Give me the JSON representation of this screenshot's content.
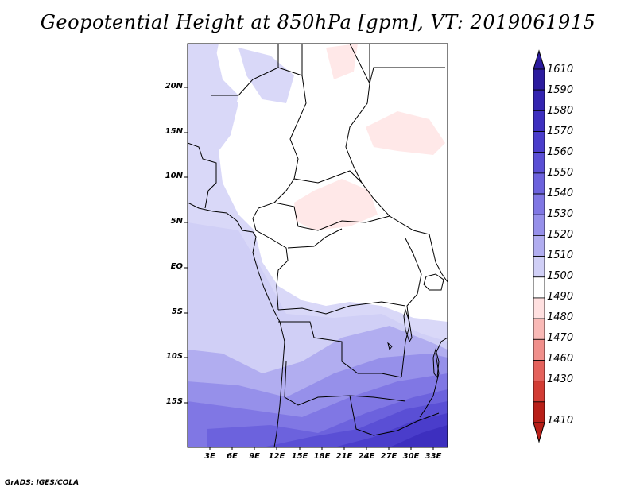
{
  "title": "Geopotential Height at 850hPa [gpm], VT: 2019061915",
  "credit": "GrADS: IGES/COLA",
  "lat_labels": [
    "20N",
    "15N",
    "10N",
    "5N",
    "EQ",
    "5S",
    "10S",
    "15S"
  ],
  "lon_labels": [
    "3E",
    "6E",
    "9E",
    "12E",
    "15E",
    "18E",
    "21E",
    "24E",
    "27E",
    "30E",
    "33E"
  ],
  "colorbar": {
    "levels": [
      "1610",
      "1590",
      "1580",
      "1570",
      "1560",
      "1550",
      "1540",
      "1530",
      "1520",
      "1510",
      "1500",
      "1490",
      "1480",
      "1470",
      "1460",
      "1430",
      "1410"
    ],
    "colors": [
      "#2b1b9e",
      "#3324b0",
      "#3d2fbf",
      "#4a3dcb",
      "#5a4fd5",
      "#6c62dd",
      "#8077e4",
      "#9690ea",
      "#b1adf0",
      "#d0cff6",
      "#ffffff",
      "#ffe0e0",
      "#f9b9b6",
      "#f08f8b",
      "#e4625c",
      "#d23c34",
      "#b81f18"
    ]
  }
}
